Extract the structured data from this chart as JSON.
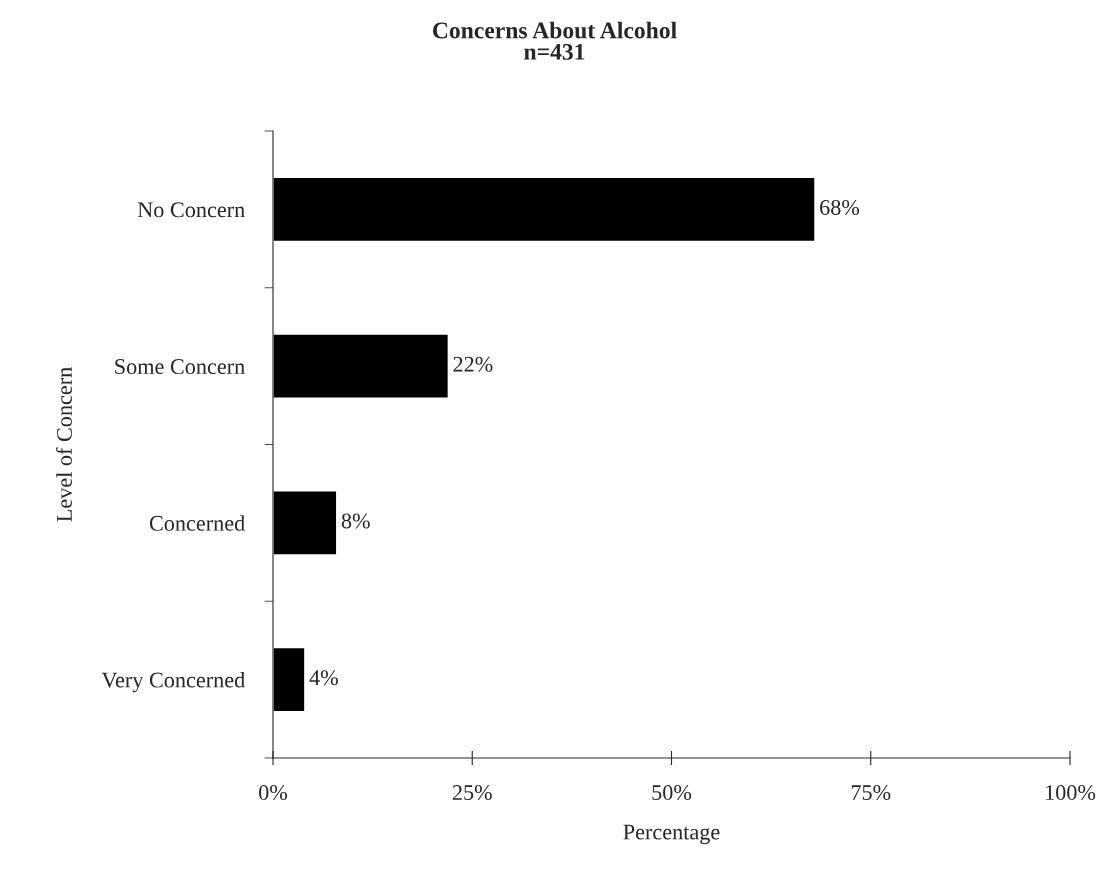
{
  "chart_data": {
    "type": "bar",
    "orientation": "horizontal",
    "title": "Concerns About Alcohol\nn=431",
    "xlabel": "Percentage",
    "ylabel": "Level of Concern",
    "categories": [
      "No Concern",
      "Some Concern",
      "Concerned",
      "Very Concerned"
    ],
    "values": [
      68,
      22,
      8,
      4
    ],
    "color": "#000000",
    "value_labels": [
      "68%",
      "22%",
      "8%",
      "4%"
    ],
    "xlim": [
      0,
      100
    ],
    "xticks": [
      {
        "value": 0,
        "label": "0%"
      },
      {
        "value": 25,
        "label": "25%"
      },
      {
        "value": 50,
        "label": "50%"
      },
      {
        "value": 75,
        "label": "75%"
      },
      {
        "value": 100,
        "label": "100%"
      }
    ],
    "grid": false,
    "legend": false
  }
}
